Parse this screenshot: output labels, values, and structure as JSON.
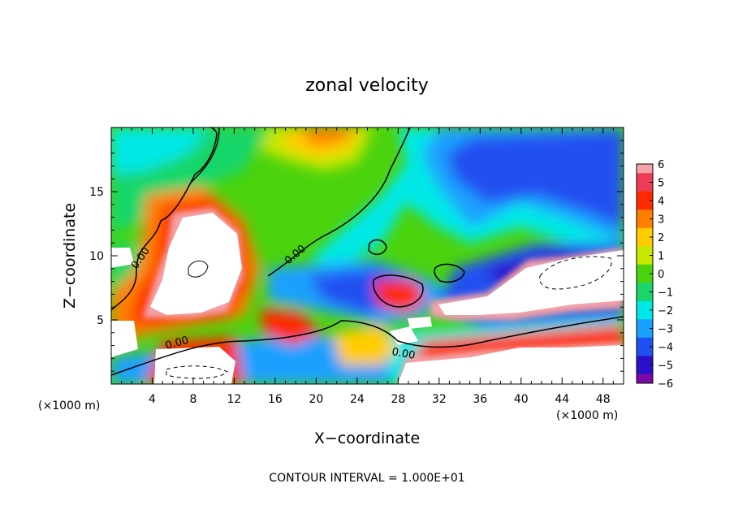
{
  "chart_data": {
    "type": "heatmap",
    "title": "zonal velocity",
    "xlabel": "X−coordinate",
    "ylabel": "Z−coordinate",
    "x_unit": "(×1000 m)",
    "y_unit": "(×1000 m)",
    "xlim": [
      0,
      50
    ],
    "ylim": [
      0,
      20
    ],
    "x_ticks": [
      4,
      8,
      12,
      16,
      20,
      24,
      28,
      32,
      36,
      40,
      44,
      48
    ],
    "y_ticks": [
      5,
      10,
      15
    ],
    "colorbar": {
      "ticks": [
        "6",
        "5",
        "4",
        "3",
        "2",
        "1",
        "0",
        "−1",
        "−2",
        "−3",
        "−4",
        "−5",
        "−6"
      ],
      "range": [
        -6,
        6
      ],
      "colors": {
        "6": "#f4a3a8",
        "5": "#ef3b55",
        "4": "#ff2a00",
        "3": "#ff8000",
        "2": "#ffcc00",
        "1": "#c8e800",
        "0": "#4bd30d",
        "-1": "#18d66a",
        "-2": "#00e8e6",
        "-3": "#1aa0ff",
        "-4": "#2050f0",
        "-5": "#2a10c8",
        "-6": "#7a0aa8"
      }
    },
    "contour_labels": [
      "0.00",
      "0.00",
      "0.00",
      "0.00"
    ],
    "note": "CONTOUR INTERVAL = 1.000E+01"
  }
}
